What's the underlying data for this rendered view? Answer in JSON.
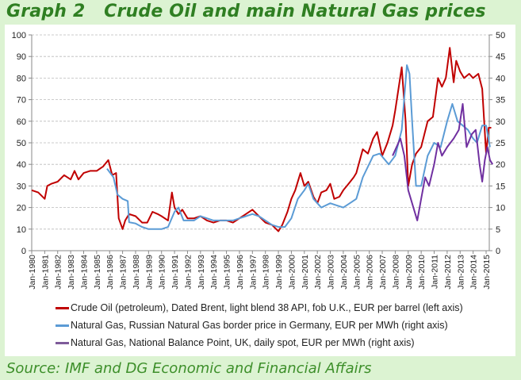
{
  "title": "Graph 2   Crude Oil and main Natural Gas prices",
  "source": "Source: IMF and DG Economic and Financial Affairs",
  "chart_data": {
    "type": "line",
    "title": "Crude Oil and main Natural Gas prices",
    "xlabel": "",
    "ylabel_left": "EUR per barrel",
    "ylabel_right": "EUR per MWh",
    "xlim": [
      1980,
      2015.6
    ],
    "ylim_left": [
      0,
      100
    ],
    "ylim_right": [
      0,
      50
    ],
    "yticks_left": [
      "0",
      "10",
      "20",
      "30",
      "40",
      "50",
      "60",
      "70",
      "80",
      "90",
      "100"
    ],
    "yticks_right": [
      "0",
      "5",
      "10",
      "15",
      "20",
      "25",
      "30",
      "35",
      "40",
      "45",
      "50"
    ],
    "xticks": [
      "Jan-1980",
      "Jan-1981",
      "Jan-1982",
      "Jan-1983",
      "Jan-1984",
      "Jan-1985",
      "Jan-1986",
      "Jan-1987",
      "Jan-1988",
      "Jan-1989",
      "Jan-1990",
      "Jan-1991",
      "Jan-1992",
      "Jan-1993",
      "Jan-1994",
      "Jan-1995",
      "Jan-1996",
      "Jan-1997",
      "Jan-1998",
      "Jan-1999",
      "Jan-2000",
      "Jan-2001",
      "Jan-2002",
      "Jan-2003",
      "Jan-2004",
      "Jan-2005",
      "Jan-2006",
      "Jan-2007",
      "Jan-2008",
      "Jan-2009",
      "Jan-2010",
      "Jan-2011",
      "Jan-2012",
      "Jan-2013",
      "Jan-2014",
      "Jan-2015"
    ],
    "grid": true,
    "legend_position": "bottom",
    "series": [
      {
        "name": "Crude Oil (petroleum),  Dated Brent, light blend 38 API, fob U.K., EUR per barrel (left axis)",
        "axis": "left",
        "color": "#c00000",
        "points": [
          [
            1980,
            28
          ],
          [
            1980.5,
            27
          ],
          [
            1981,
            24
          ],
          [
            1981.2,
            30
          ],
          [
            1981.5,
            31
          ],
          [
            1982,
            32
          ],
          [
            1982.5,
            35
          ],
          [
            1983,
            33
          ],
          [
            1983.3,
            37
          ],
          [
            1983.6,
            33
          ],
          [
            1984,
            36
          ],
          [
            1984.5,
            37
          ],
          [
            1985,
            37
          ],
          [
            1985.5,
            39
          ],
          [
            1985.9,
            42
          ],
          [
            1986.2,
            35
          ],
          [
            1986.5,
            36
          ],
          [
            1986.7,
            15
          ],
          [
            1987,
            10
          ],
          [
            1987.2,
            14
          ],
          [
            1987.5,
            17
          ],
          [
            1988,
            16
          ],
          [
            1988.5,
            13
          ],
          [
            1988.9,
            13
          ],
          [
            1989.3,
            18
          ],
          [
            1989.7,
            17
          ],
          [
            1990,
            16
          ],
          [
            1990.5,
            14
          ],
          [
            1990.8,
            27
          ],
          [
            1991,
            20
          ],
          [
            1991.3,
            17
          ],
          [
            1991.6,
            19
          ],
          [
            1992,
            15
          ],
          [
            1992.5,
            15
          ],
          [
            1993,
            16
          ],
          [
            1993.5,
            14
          ],
          [
            1994,
            13
          ],
          [
            1994.5,
            14
          ],
          [
            1995,
            14
          ],
          [
            1995.5,
            13
          ],
          [
            1996,
            15
          ],
          [
            1996.5,
            17
          ],
          [
            1997,
            19
          ],
          [
            1997.5,
            16
          ],
          [
            1998,
            13
          ],
          [
            1998.5,
            12
          ],
          [
            1999,
            9
          ],
          [
            1999.3,
            12
          ],
          [
            1999.7,
            18
          ],
          [
            2000,
            24
          ],
          [
            2000.3,
            28
          ],
          [
            2000.7,
            36
          ],
          [
            2001,
            30
          ],
          [
            2001.3,
            32
          ],
          [
            2001.7,
            25
          ],
          [
            2002,
            22
          ],
          [
            2002.3,
            27
          ],
          [
            2002.7,
            28
          ],
          [
            2003,
            31
          ],
          [
            2003.3,
            24
          ],
          [
            2003.7,
            25
          ],
          [
            2004,
            28
          ],
          [
            2004.4,
            31
          ],
          [
            2004.8,
            34
          ],
          [
            2005,
            36
          ],
          [
            2005.5,
            47
          ],
          [
            2005.9,
            45
          ],
          [
            2006.3,
            52
          ],
          [
            2006.6,
            55
          ],
          [
            2007,
            44
          ],
          [
            2007.4,
            50
          ],
          [
            2007.8,
            58
          ],
          [
            2008,
            65
          ],
          [
            2008.5,
            85
          ],
          [
            2008.8,
            60
          ],
          [
            2009,
            30
          ],
          [
            2009.3,
            40
          ],
          [
            2009.6,
            45
          ],
          [
            2010,
            48
          ],
          [
            2010.5,
            60
          ],
          [
            2010.9,
            62
          ],
          [
            2011.3,
            80
          ],
          [
            2011.6,
            76
          ],
          [
            2011.9,
            80
          ],
          [
            2012.2,
            94
          ],
          [
            2012.5,
            78
          ],
          [
            2012.7,
            88
          ],
          [
            2013,
            83
          ],
          [
            2013.3,
            80
          ],
          [
            2013.7,
            82
          ],
          [
            2014,
            80
          ],
          [
            2014.4,
            82
          ],
          [
            2014.7,
            75
          ],
          [
            2015,
            45
          ],
          [
            2015.2,
            57
          ],
          [
            2015.4,
            57
          ]
        ]
      },
      {
        "name": "Natural Gas, Russian Natural Gas border price in Germany, EUR per MWh (right axis)",
        "axis": "right",
        "color": "#5b9bd5",
        "points": [
          [
            1985.8,
            19
          ],
          [
            1986.3,
            17
          ],
          [
            1986.6,
            13
          ],
          [
            1987,
            12
          ],
          [
            1987.4,
            11.5
          ],
          [
            1987.5,
            6.6
          ],
          [
            1988,
            6.3
          ],
          [
            1988.5,
            5.5
          ],
          [
            1989,
            5
          ],
          [
            1989.5,
            5
          ],
          [
            1990,
            5
          ],
          [
            1990.5,
            5.5
          ],
          [
            1991,
            9
          ],
          [
            1991.3,
            10
          ],
          [
            1991.7,
            7
          ],
          [
            1992,
            7
          ],
          [
            1992.5,
            7
          ],
          [
            1993,
            8
          ],
          [
            1993.5,
            7.5
          ],
          [
            1994,
            7
          ],
          [
            1994.5,
            7
          ],
          [
            1995,
            7
          ],
          [
            1995.5,
            7
          ],
          [
            1996,
            7.5
          ],
          [
            1996.5,
            8
          ],
          [
            1997,
            8.5
          ],
          [
            1997.5,
            8
          ],
          [
            1998,
            7
          ],
          [
            1998.5,
            6
          ],
          [
            1999,
            5.5
          ],
          [
            1999.5,
            5.5
          ],
          [
            2000,
            7.5
          ],
          [
            2000.5,
            12
          ],
          [
            2001,
            14
          ],
          [
            2001.3,
            15.5
          ],
          [
            2001.7,
            12
          ],
          [
            2002.3,
            10
          ],
          [
            2003,
            11
          ],
          [
            2003.5,
            10.5
          ],
          [
            2004,
            10
          ],
          [
            2004.5,
            11
          ],
          [
            2005,
            12
          ],
          [
            2005.5,
            17
          ],
          [
            2006.3,
            22
          ],
          [
            2006.8,
            22.5
          ],
          [
            2007.5,
            20
          ],
          [
            2008,
            22
          ],
          [
            2008.5,
            28
          ],
          [
            2008.9,
            43
          ],
          [
            2009.1,
            41
          ],
          [
            2009.3,
            30
          ],
          [
            2009.6,
            15
          ],
          [
            2010,
            15
          ],
          [
            2010.5,
            22
          ],
          [
            2011,
            25
          ],
          [
            2011.5,
            24
          ],
          [
            2012,
            30
          ],
          [
            2012.4,
            34
          ],
          [
            2012.8,
            30
          ],
          [
            2013.2,
            29
          ],
          [
            2013.6,
            28
          ],
          [
            2014,
            26
          ],
          [
            2014.3,
            25
          ],
          [
            2014.7,
            29
          ],
          [
            2015,
            29
          ],
          [
            2015.3,
            24
          ]
        ]
      },
      {
        "name": "Natural Gas, National Balance Point, UK, daily spot, EUR per MWh (right axis)",
        "axis": "right",
        "color": "#7030a0",
        "points": [
          [
            2007.8,
            22
          ],
          [
            2008.4,
            26
          ],
          [
            2008.7,
            22
          ],
          [
            2009,
            14
          ],
          [
            2009.4,
            10
          ],
          [
            2009.7,
            7
          ],
          [
            2010,
            12
          ],
          [
            2010.3,
            17
          ],
          [
            2010.6,
            15
          ],
          [
            2011,
            20
          ],
          [
            2011.3,
            25
          ],
          [
            2011.6,
            22
          ],
          [
            2012,
            24
          ],
          [
            2012.5,
            26
          ],
          [
            2012.9,
            28
          ],
          [
            2013.2,
            34
          ],
          [
            2013.5,
            24
          ],
          [
            2013.9,
            27
          ],
          [
            2014.2,
            28
          ],
          [
            2014.5,
            20
          ],
          [
            2014.7,
            16
          ],
          [
            2014.9,
            21
          ],
          [
            2015.1,
            24
          ],
          [
            2015.3,
            21
          ],
          [
            2015.5,
            20
          ]
        ]
      }
    ]
  }
}
